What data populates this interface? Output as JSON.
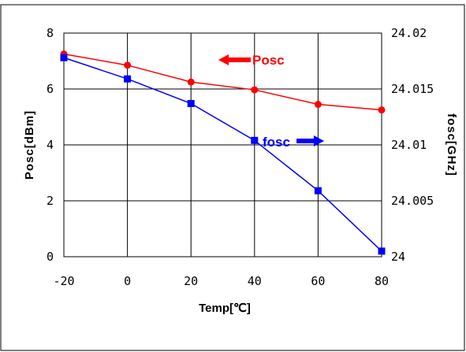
{
  "chart_data": {
    "type": "line",
    "x": [
      -20,
      0,
      20,
      40,
      60,
      80
    ],
    "xlabel": "Temp[℃]",
    "xticks": [
      "-20",
      "0",
      "20",
      "40",
      "60",
      "80"
    ],
    "xlim": [
      -20,
      80
    ],
    "y_left": {
      "label": "Posc[dBm]",
      "ticks": [
        "0",
        "2",
        "4",
        "6",
        "8"
      ],
      "lim": [
        0,
        8
      ]
    },
    "y_right": {
      "label": "fosc[GHz]",
      "ticks": [
        "24",
        "24.005",
        "24.01",
        "24.015",
        "24.02"
      ],
      "lim": [
        24.0,
        24.02
      ]
    },
    "grid": true,
    "series": [
      {
        "name": "Posc",
        "axis": "left",
        "color": "#ff0000",
        "marker": "circle",
        "values": [
          7.25,
          6.85,
          6.25,
          5.97,
          5.45,
          5.25
        ]
      },
      {
        "name": "fosc",
        "axis": "right",
        "color": "#0000ff",
        "marker": "square",
        "values": [
          24.0178,
          24.0159,
          24.0137,
          24.0104,
          24.0059,
          24.0005
        ]
      }
    ]
  }
}
